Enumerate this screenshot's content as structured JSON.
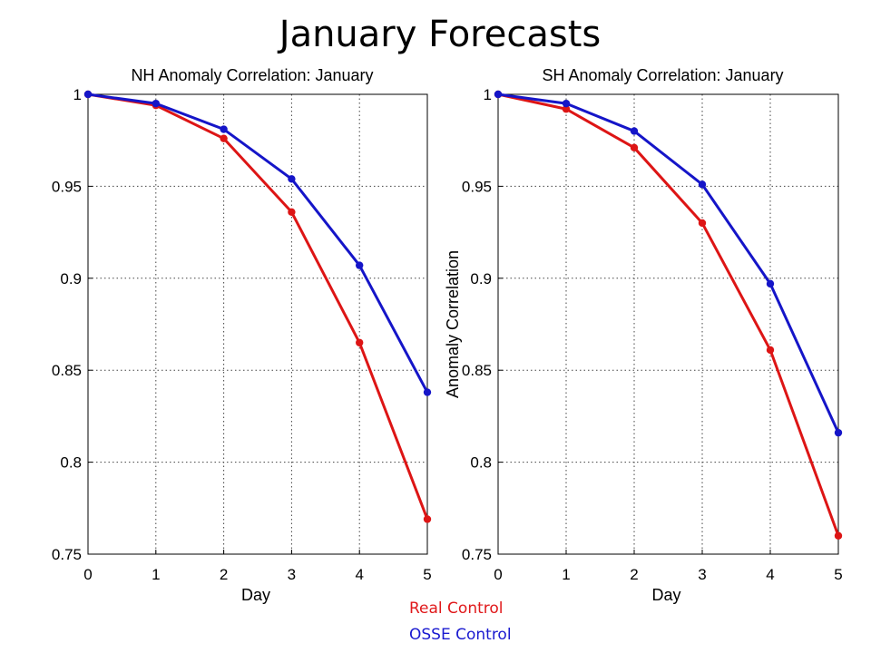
{
  "title": "January Forecasts",
  "legend": {
    "real": {
      "label": "Real Control",
      "color": "#e0191b"
    },
    "osse": {
      "label": "OSSE Control",
      "color": "#1a1ad0"
    }
  },
  "colors": {
    "real": "#dd1515",
    "osse": "#1515c8"
  },
  "chart_data": [
    {
      "type": "line",
      "title": "NH Anomaly Correlation: January",
      "xlabel": "Day",
      "ylabel": "",
      "x": [
        0,
        1,
        2,
        3,
        4,
        5
      ],
      "xlim": [
        0,
        5
      ],
      "ylim": [
        0.75,
        1
      ],
      "xticks": [
        0,
        1,
        2,
        3,
        4,
        5
      ],
      "yticks": [
        0.75,
        0.8,
        0.85,
        0.9,
        0.95,
        1
      ],
      "ytick_labels": [
        "0.75",
        "0.8",
        "0.85",
        "0.9",
        "0.95",
        "1"
      ],
      "grid": true,
      "series": [
        {
          "name": "Real Control",
          "values": [
            1.0,
            0.994,
            0.976,
            0.936,
            0.865,
            0.769
          ]
        },
        {
          "name": "OSSE Control",
          "values": [
            1.0,
            0.995,
            0.981,
            0.954,
            0.907,
            0.838
          ]
        }
      ]
    },
    {
      "type": "line",
      "title": "SH Anomaly Correlation: January",
      "xlabel": "Day",
      "ylabel": "Anomaly Correlation",
      "x": [
        0,
        1,
        2,
        3,
        4,
        5
      ],
      "xlim": [
        0,
        5
      ],
      "ylim": [
        0.75,
        1
      ],
      "xticks": [
        0,
        1,
        2,
        3,
        4,
        5
      ],
      "yticks": [
        0.75,
        0.8,
        0.85,
        0.9,
        0.95,
        1
      ],
      "ytick_labels": [
        "0.75",
        "0.8",
        "0.85",
        "0.9",
        "0.95",
        "1"
      ],
      "grid": true,
      "series": [
        {
          "name": "Real Control",
          "values": [
            1.0,
            0.992,
            0.971,
            0.93,
            0.861,
            0.76
          ]
        },
        {
          "name": "OSSE Control",
          "values": [
            1.0,
            0.995,
            0.98,
            0.951,
            0.897,
            0.816
          ]
        }
      ]
    }
  ]
}
